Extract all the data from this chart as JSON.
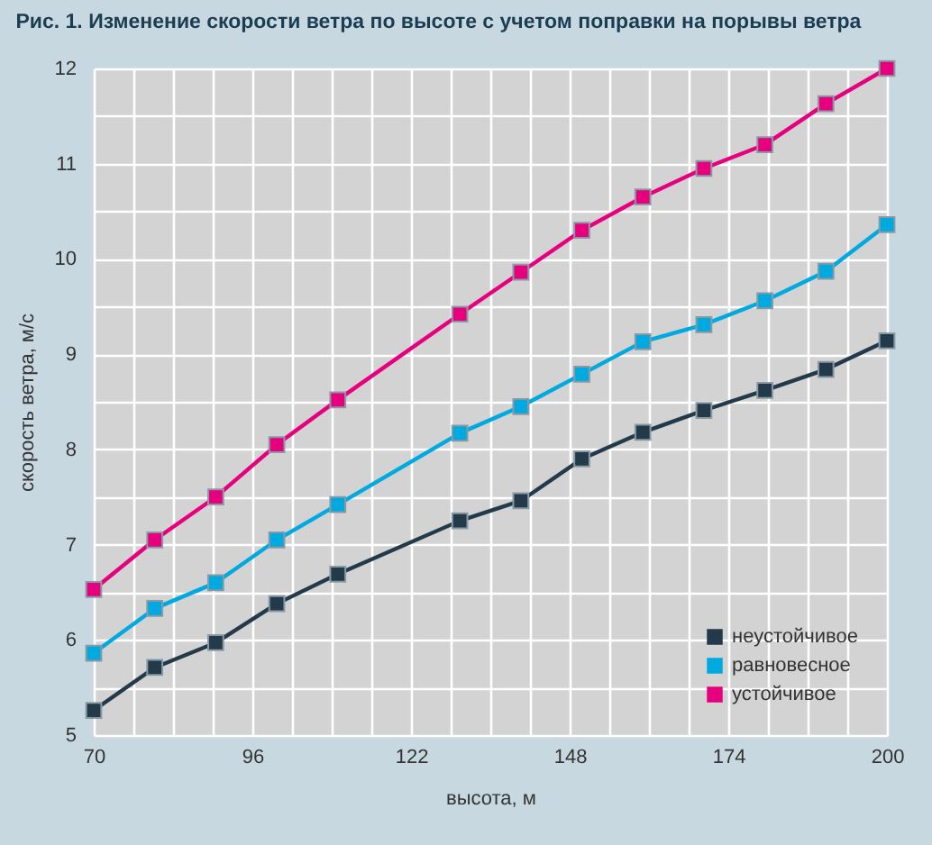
{
  "chart_data": {
    "type": "line",
    "title": "Рис. 1. Изменение скорости ветра по высоте с учетом поправки на порывы ветра",
    "xlabel": "высота, м",
    "ylabel": "скорость ветра, м/с",
    "x": [
      70,
      80,
      90,
      100,
      110,
      130,
      140,
      150,
      160,
      170,
      180,
      190,
      200
    ],
    "series": [
      {
        "name": "неустойчивое",
        "color": "#233a4a",
        "values": [
          5.26,
          5.71,
          5.97,
          6.38,
          6.69,
          7.25,
          7.46,
          7.9,
          8.18,
          8.41,
          8.62,
          8.84,
          9.14
        ]
      },
      {
        "name": "равновесное",
        "color": "#00a9e0",
        "values": [
          5.86,
          6.33,
          6.6,
          7.05,
          7.42,
          8.17,
          8.45,
          8.79,
          9.13,
          9.31,
          9.56,
          9.87,
          10.36
        ]
      },
      {
        "name": "устойчивое",
        "color": "#e6007e",
        "values": [
          6.53,
          7.05,
          7.5,
          8.05,
          8.52,
          9.42,
          9.86,
          10.3,
          10.65,
          10.95,
          11.2,
          11.63,
          12
        ]
      }
    ],
    "xlim": [
      70,
      200
    ],
    "xticks": [
      70,
      {
        "value": 76.5,
        "label": null
      },
      {
        "value": 83,
        "label": null
      },
      {
        "value": 89.5,
        "label": null
      },
      96,
      {
        "value": 102.5,
        "label": null
      },
      {
        "value": 109,
        "label": null
      },
      {
        "value": 115.5,
        "label": null
      },
      122,
      {
        "value": 128.5,
        "label": null
      },
      {
        "value": 135,
        "label": null
      },
      {
        "value": 141.5,
        "label": null
      },
      148,
      {
        "value": 154.5,
        "label": null
      },
      {
        "value": 161,
        "label": null
      },
      {
        "value": 167.5,
        "label": null
      },
      174,
      {
        "value": 180.5,
        "label": null
      },
      {
        "value": 187,
        "label": null
      },
      {
        "value": 193.5,
        "label": null
      },
      200
    ],
    "ylim": [
      5,
      12
    ],
    "yticks": [
      5,
      {
        "value": 5.5,
        "label": null
      },
      6,
      {
        "value": 6.5,
        "label": null
      },
      7,
      {
        "value": 7.5,
        "label": null
      },
      8,
      {
        "value": 8.5,
        "label": null
      },
      9,
      {
        "value": 9.5,
        "label": null
      },
      10,
      {
        "value": 10.5,
        "label": null
      },
      11,
      {
        "value": 11.5,
        "label": null
      },
      12
    ],
    "grid": true,
    "legend": "bottom right",
    "marker": "square",
    "line_style": "solid"
  }
}
